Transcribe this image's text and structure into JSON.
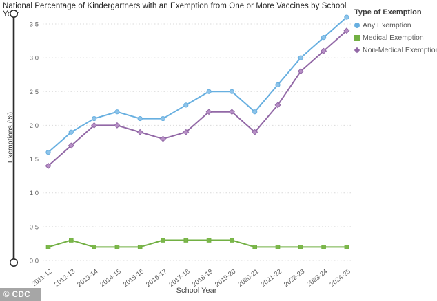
{
  "title": "National Percentage of Kindergartners with an Exemption from One or More Vaccines by School Year",
  "watermark": "© CDC",
  "legend": {
    "title": "Type of Exemption"
  },
  "axes": {
    "xlabel": "School Year",
    "ylabel": "Exemptions (%)"
  },
  "colors": {
    "any_exemption": "#67afe0",
    "medical_exemption": "#72b043",
    "non_medical_exemption": "#9268a6",
    "gridline": "#d9d9d9",
    "tick_text": "#666666",
    "slider": "#2b2b2b",
    "watermark_bg": "#a6a6a6"
  },
  "chart_data": {
    "type": "line",
    "title": "National Percentage of Kindergartners with an Exemption from One or More Vaccines by School Year",
    "xlabel": "School Year",
    "ylabel": "Exemptions (%)",
    "grid": true,
    "legend_position": "top-right",
    "ylim": [
      0,
      3.6
    ],
    "yticks": [
      "0.0",
      "0.5",
      "1.0",
      "1.5",
      "2.0",
      "2.5",
      "3.0",
      "3.5"
    ],
    "categories": [
      "2011-12",
      "2012-13",
      "2013-14",
      "2014-15",
      "2015-16",
      "2016-17",
      "2017-18",
      "2018-19",
      "2019-20",
      "2020-21",
      "2021-22",
      "2022-23",
      "2023-24",
      "2024-25"
    ],
    "series": [
      {
        "name": "Any Exemption",
        "marker": "circle",
        "color": "#67afe0",
        "marker_fill": "#8ec4ea",
        "values": [
          1.6,
          1.9,
          2.1,
          2.2,
          2.1,
          2.1,
          2.3,
          2.5,
          2.5,
          2.2,
          2.6,
          3.0,
          3.3,
          3.6
        ]
      },
      {
        "name": "Medical Exemption",
        "marker": "square",
        "color": "#72b043",
        "marker_fill": "#7cb84a",
        "values": [
          0.2,
          0.3,
          0.2,
          0.2,
          0.2,
          0.3,
          0.3,
          0.3,
          0.3,
          0.2,
          0.2,
          0.2,
          0.2,
          0.2
        ]
      },
      {
        "name": "Non-Medical Exemption",
        "marker": "diamond",
        "color": "#9268a6",
        "marker_fill": "#b78fc6",
        "values": [
          1.4,
          1.7,
          2.0,
          2.0,
          1.9,
          1.8,
          1.9,
          2.2,
          2.2,
          1.9,
          2.3,
          2.8,
          3.1,
          3.4
        ]
      }
    ]
  }
}
